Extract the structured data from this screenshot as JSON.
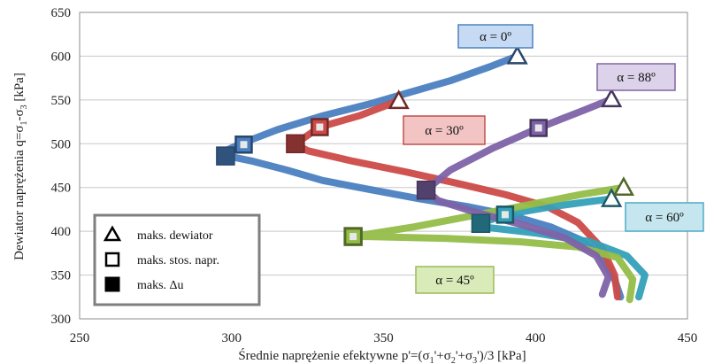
{
  "chart_data": {
    "type": "line",
    "title": "",
    "xlabel_parts": [
      "Średnie naprężenie efektywne p'=(σ",
      "1",
      "'+σ",
      "2",
      "'+σ",
      "3",
      "')/3 [kPa]"
    ],
    "ylabel_parts": [
      "Dewiator naprężenia  q=σ",
      "1",
      "-σ",
      "3",
      " [kPa]"
    ],
    "xlim": [
      250,
      450
    ],
    "ylim": [
      300,
      650
    ],
    "xticks": [
      250,
      300,
      350,
      400,
      450
    ],
    "yticks": [
      300,
      350,
      400,
      450,
      500,
      550,
      600,
      650
    ],
    "grid": "horizontal",
    "series": [
      {
        "name": "α = 0º",
        "color": "#4a7fc0",
        "x": [
          428,
          426,
          422,
          415,
          405,
          392,
          378,
          362,
          345,
          330,
          318,
          307,
          300,
          298,
          303,
          315,
          330,
          345,
          358,
          372,
          385,
          394
        ],
        "y": [
          325,
          345,
          370,
          390,
          405,
          418,
          428,
          437,
          448,
          458,
          470,
          480,
          485,
          492,
          500,
          516,
          532,
          545,
          558,
          572,
          588,
          600
        ],
        "max_deviator": {
          "x": 394,
          "y": 600
        },
        "max_stress_ratio": {
          "x": 304,
          "y": 499
        },
        "max_du": {
          "x": 298,
          "y": 486
        }
      },
      {
        "name": "α = 30º",
        "color": "#cc4b48",
        "x": [
          427,
          426,
          422,
          414,
          404,
          390,
          374,
          357,
          340,
          325,
          321,
          329,
          342,
          355
        ],
        "y": [
          325,
          350,
          380,
          410,
          428,
          442,
          455,
          468,
          480,
          492,
          500,
          519,
          532,
          549
        ],
        "max_deviator": {
          "x": 355,
          "y": 549
        },
        "max_stress_ratio": {
          "x": 329,
          "y": 519
        },
        "max_du": {
          "x": 321,
          "y": 500
        }
      },
      {
        "name": "α = 60º",
        "color": "#33a0b8",
        "x": [
          434,
          436,
          430,
          418,
          400,
          385,
          382,
          390,
          405,
          418,
          425
        ],
        "y": [
          325,
          350,
          372,
          388,
          398,
          404,
          409,
          419,
          428,
          434,
          437
        ],
        "max_deviator": {
          "x": 425,
          "y": 437
        },
        "max_stress_ratio": {
          "x": 390,
          "y": 419
        },
        "max_du": {
          "x": 382,
          "y": 409
        }
      },
      {
        "name": "α = 45º",
        "color": "#93bd48",
        "x": [
          431,
          432,
          427,
          414,
          395,
          370,
          345,
          340,
          360,
          390,
          415,
          429
        ],
        "y": [
          322,
          345,
          370,
          382,
          388,
          392,
          394,
          394,
          405,
          425,
          442,
          450
        ],
        "max_deviator": {
          "x": 429,
          "y": 450
        },
        "max_stress_ratio": {
          "x": 340,
          "y": 394
        },
        "max_du": {
          "x": 340,
          "y": 394
        }
      },
      {
        "name": "α = 88º",
        "color": "#7e62a8",
        "x": [
          422,
          424,
          420,
          410,
          395,
          380,
          368,
          364,
          372,
          386,
          401,
          415,
          425
        ],
        "y": [
          328,
          348,
          372,
          392,
          408,
          422,
          435,
          447,
          470,
          495,
          518,
          537,
          551
        ],
        "max_deviator": {
          "x": 425,
          "y": 551
        },
        "max_stress_ratio": {
          "x": 401,
          "y": 518
        },
        "max_du": {
          "x": 364,
          "y": 447
        }
      }
    ],
    "legend": {
      "position": "bottom-left",
      "entries": [
        {
          "symbol": "triangle",
          "label": "maks. dewiator"
        },
        {
          "symbol": "square-open",
          "label": "maks. stos. napr."
        },
        {
          "symbol": "square-filled",
          "label": "maks. Δu"
        }
      ]
    },
    "annotations": [
      {
        "series": 0,
        "label": "α = 0º",
        "background": "#c6dbf3",
        "border": "#4f81bd"
      },
      {
        "series": 1,
        "label": "α = 30º",
        "background": "#f2c4c3",
        "border": "#c0504d"
      },
      {
        "series": 2,
        "label": "α = 60º",
        "background": "#c5e6ee",
        "border": "#4bacc6"
      },
      {
        "series": 3,
        "label": "α = 45º",
        "background": "#d9ebb8",
        "border": "#9bbb59"
      },
      {
        "series": 4,
        "label": "α = 88º",
        "background": "#dcd2ea",
        "border": "#8064a2"
      }
    ]
  }
}
